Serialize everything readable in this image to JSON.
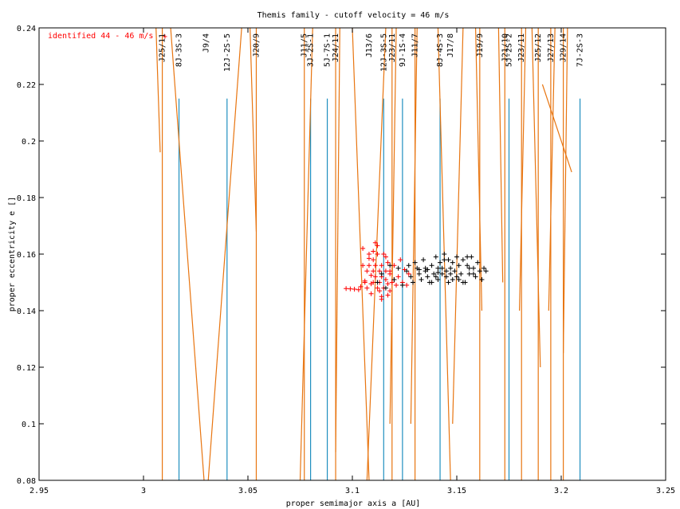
{
  "chart_data": {
    "type": "scatter",
    "title": "Themis family - cutoff velocity = 46 m/s",
    "xlabel": "proper semimajor axis a [AU]",
    "ylabel": "proper eccentricity e []",
    "xlim": [
      2.95,
      3.25
    ],
    "ylim": [
      0.08,
      0.24
    ],
    "x_ticks": [
      2.95,
      3.0,
      3.05,
      3.1,
      3.15,
      3.2,
      3.25
    ],
    "x_tick_labels": [
      "2.95",
      "3",
      "3.05",
      "3.1",
      "3.15",
      "3.2",
      "3.25"
    ],
    "y_ticks": [
      0.08,
      0.1,
      0.12,
      0.14,
      0.16,
      0.18,
      0.2,
      0.22,
      0.24
    ],
    "y_tick_labels": [
      "0.08",
      "0.1",
      "0.12",
      "0.14",
      "0.16",
      "0.18",
      "0.2",
      "0.22",
      "0.24"
    ],
    "grid": false,
    "legend": {
      "position": "top-left",
      "label": "identified 44 - 46 m/s",
      "color": "#ff0000",
      "marker": "+"
    },
    "colors": {
      "identified": "#ff0000",
      "family": "#000000",
      "resonance_two_body": "#e87510",
      "resonance_three_body": "#1f8fbf"
    },
    "two_body_resonances": [
      {
        "label": "J25/11",
        "a": 3.009,
        "lines": [
          [
            [
              3.009,
              0.08
            ],
            [
              3.009,
              0.24
            ]
          ],
          [
            [
              3.006,
              0.24
            ],
            [
              3.008,
              0.196
            ]
          ]
        ]
      },
      {
        "label": "J9/4",
        "a": 3.03,
        "lines": [
          [
            [
              3.013,
              0.24
            ],
            [
              3.029,
              0.08
            ]
          ],
          [
            [
              3.047,
              0.24
            ],
            [
              3.031,
              0.08
            ]
          ]
        ]
      },
      {
        "label": "J20/9",
        "a": 3.054,
        "lines": [
          [
            [
              3.054,
              0.08
            ],
            [
              3.054,
              0.24
            ]
          ],
          [
            [
              3.051,
              0.24
            ],
            [
              3.054,
              0.168
            ]
          ]
        ]
      },
      {
        "label": "J11/5",
        "a": 3.077,
        "lines": [
          [
            [
              3.077,
              0.08
            ],
            [
              3.077,
              0.24
            ]
          ],
          [
            [
              3.081,
              0.24
            ],
            [
              3.075,
              0.08
            ]
          ]
        ]
      },
      {
        "label": "J24/11",
        "a": 3.092,
        "lines": [
          [
            [
              3.092,
              0.08
            ],
            [
              3.092,
              0.24
            ]
          ],
          [
            [
              3.094,
              0.24
            ],
            [
              3.092,
              0.09
            ]
          ]
        ]
      },
      {
        "label": "J13/6",
        "a": 3.108,
        "lines": [
          [
            [
              3.1,
              0.24
            ],
            [
              3.108,
              0.08
            ]
          ],
          [
            [
              3.116,
              0.24
            ],
            [
              3.107,
              0.08
            ]
          ]
        ]
      },
      {
        "label": "J23/11",
        "a": 3.119,
        "lines": [
          [
            [
              3.119,
              0.08
            ],
            [
              3.119,
              0.24
            ]
          ],
          [
            [
              3.121,
              0.24
            ],
            [
              3.118,
              0.1
            ]
          ]
        ]
      },
      {
        "label": "J11/7",
        "a": 3.13,
        "lines": [
          [
            [
              3.13,
              0.08
            ],
            [
              3.13,
              0.24
            ]
          ],
          [
            [
              3.131,
              0.24
            ],
            [
              3.128,
              0.1
            ]
          ]
        ]
      },
      {
        "label": "J17/8",
        "a": 3.147,
        "lines": [
          [
            [
              3.141,
              0.24
            ],
            [
              3.147,
              0.08
            ]
          ],
          [
            [
              3.153,
              0.24
            ],
            [
              3.148,
              0.1
            ]
          ]
        ]
      },
      {
        "label": "J19/9",
        "a": 3.161,
        "lines": [
          [
            [
              3.161,
              0.08
            ],
            [
              3.161,
              0.24
            ]
          ],
          [
            [
              3.159,
              0.24
            ],
            [
              3.162,
              0.14
            ]
          ]
        ]
      },
      {
        "label": "J21/10",
        "a": 3.173,
        "lines": [
          [
            [
              3.173,
              0.08
            ],
            [
              3.173,
              0.24
            ]
          ],
          [
            [
              3.17,
              0.24
            ],
            [
              3.172,
              0.15
            ]
          ]
        ]
      },
      {
        "label": "J23/11",
        "a": 3.181,
        "lines": [
          [
            [
              3.181,
              0.08
            ],
            [
              3.181,
              0.24
            ]
          ],
          [
            [
              3.183,
              0.24
            ],
            [
              3.18,
              0.14
            ]
          ]
        ]
      },
      {
        "label": "J25/12",
        "a": 3.189,
        "lines": [
          [
            [
              3.189,
              0.08
            ],
            [
              3.189,
              0.24
            ]
          ],
          [
            [
              3.186,
              0.24
            ],
            [
              3.19,
              0.12
            ]
          ],
          [
            [
              3.191,
              0.22
            ],
            [
              3.205,
              0.189
            ]
          ]
        ]
      },
      {
        "label": "J27/13",
        "a": 3.195,
        "lines": [
          [
            [
              3.195,
              0.08
            ],
            [
              3.195,
              0.24
            ]
          ],
          [
            [
              3.197,
              0.24
            ],
            [
              3.194,
              0.14
            ]
          ]
        ]
      },
      {
        "label": "J29/14",
        "a": 3.201,
        "lines": [
          [
            [
              3.201,
              0.08
            ],
            [
              3.201,
              0.24
            ]
          ],
          [
            [
              3.203,
              0.24
            ],
            [
              3.201,
              0.125
            ]
          ]
        ]
      }
    ],
    "three_body_resonances": [
      {
        "label": "8J-3S-3",
        "a": 3.017,
        "e_top": 0.215
      },
      {
        "label": "12J-2S-5",
        "a": 3.04,
        "e_top": 0.215
      },
      {
        "label": "3J-2S-1",
        "a": 3.08,
        "e_top": 0.215
      },
      {
        "label": "5J-7S-1",
        "a": 3.088,
        "e_top": 0.215
      },
      {
        "label": "12J-3S-5",
        "a": 3.115,
        "e_top": 0.215
      },
      {
        "label": "9J-1S-4",
        "a": 3.124,
        "e_top": 0.215
      },
      {
        "label": "8J-4S-3",
        "a": 3.142,
        "e_top": 0.215
      },
      {
        "label": "5J-2S-2",
        "a": 3.175,
        "e_top": 0.215
      },
      {
        "label": "7J-2S-3",
        "a": 3.209,
        "e_top": 0.215
      }
    ],
    "series": [
      {
        "name": "identified 44 - 46 m/s",
        "color": "#ff0000",
        "marker": "+",
        "x": [
          3.097,
          3.099,
          3.101,
          3.103,
          3.104,
          3.105,
          3.105,
          3.106,
          3.107,
          3.107,
          3.108,
          3.108,
          3.109,
          3.109,
          3.109,
          3.11,
          3.11,
          3.11,
          3.111,
          3.111,
          3.111,
          3.112,
          3.112,
          3.113,
          3.113,
          3.113,
          3.114,
          3.114,
          3.114,
          3.115,
          3.115,
          3.116,
          3.116,
          3.117,
          3.117,
          3.117,
          3.118,
          3.118,
          3.119,
          3.12,
          3.121,
          3.122,
          3.123,
          3.124,
          3.125,
          3.126,
          3.127,
          3.112,
          3.11,
          3.108,
          3.116,
          3.118,
          3.12,
          3.114,
          3.106
        ],
        "y": [
          0.1478,
          0.1477,
          0.1476,
          0.1474,
          0.1485,
          0.162,
          0.156,
          0.15,
          0.154,
          0.148,
          0.16,
          0.156,
          0.1525,
          0.1495,
          0.146,
          0.158,
          0.154,
          0.15,
          0.164,
          0.156,
          0.152,
          0.16,
          0.148,
          0.154,
          0.15,
          0.147,
          0.156,
          0.152,
          0.145,
          0.16,
          0.148,
          0.154,
          0.151,
          0.157,
          0.1495,
          0.1455,
          0.153,
          0.147,
          0.15,
          0.156,
          0.149,
          0.152,
          0.158,
          0.15,
          0.1545,
          0.149,
          0.153,
          0.163,
          0.161,
          0.1585,
          0.159,
          0.154,
          0.151,
          0.144,
          0.1505
        ]
      },
      {
        "name": "family",
        "color": "#000000",
        "marker": "+",
        "x": [
          3.112,
          3.114,
          3.116,
          3.118,
          3.12,
          3.122,
          3.124,
          3.126,
          3.127,
          3.128,
          3.129,
          3.13,
          3.131,
          3.132,
          3.133,
          3.134,
          3.135,
          3.136,
          3.137,
          3.138,
          3.139,
          3.14,
          3.141,
          3.141,
          3.142,
          3.143,
          3.144,
          3.145,
          3.145,
          3.146,
          3.147,
          3.148,
          3.148,
          3.149,
          3.15,
          3.151,
          3.152,
          3.153,
          3.154,
          3.155,
          3.156,
          3.157,
          3.158,
          3.159,
          3.16,
          3.161,
          3.162,
          3.163,
          3.164,
          3.138,
          3.14,
          3.143,
          3.146,
          3.15,
          3.153,
          3.156,
          3.132,
          3.135,
          3.144,
          3.151,
          3.155,
          3.158,
          3.136,
          3.141,
          3.147
        ],
        "y": [
          0.15,
          0.153,
          0.148,
          0.156,
          0.151,
          0.155,
          0.149,
          0.154,
          0.156,
          0.152,
          0.15,
          0.157,
          0.155,
          0.153,
          0.151,
          0.158,
          0.154,
          0.152,
          0.15,
          0.156,
          0.153,
          0.159,
          0.155,
          0.151,
          0.157,
          0.153,
          0.16,
          0.154,
          0.152,
          0.158,
          0.155,
          0.151,
          0.157,
          0.154,
          0.159,
          0.156,
          0.153,
          0.158,
          0.15,
          0.156,
          0.153,
          0.159,
          0.155,
          0.152,
          0.157,
          0.154,
          0.151,
          0.155,
          0.154,
          0.15,
          0.152,
          0.155,
          0.15,
          0.152,
          0.15,
          0.155,
          0.1545,
          0.155,
          0.158,
          0.151,
          0.159,
          0.153,
          0.1545,
          0.1535,
          0.153
        ]
      }
    ]
  }
}
